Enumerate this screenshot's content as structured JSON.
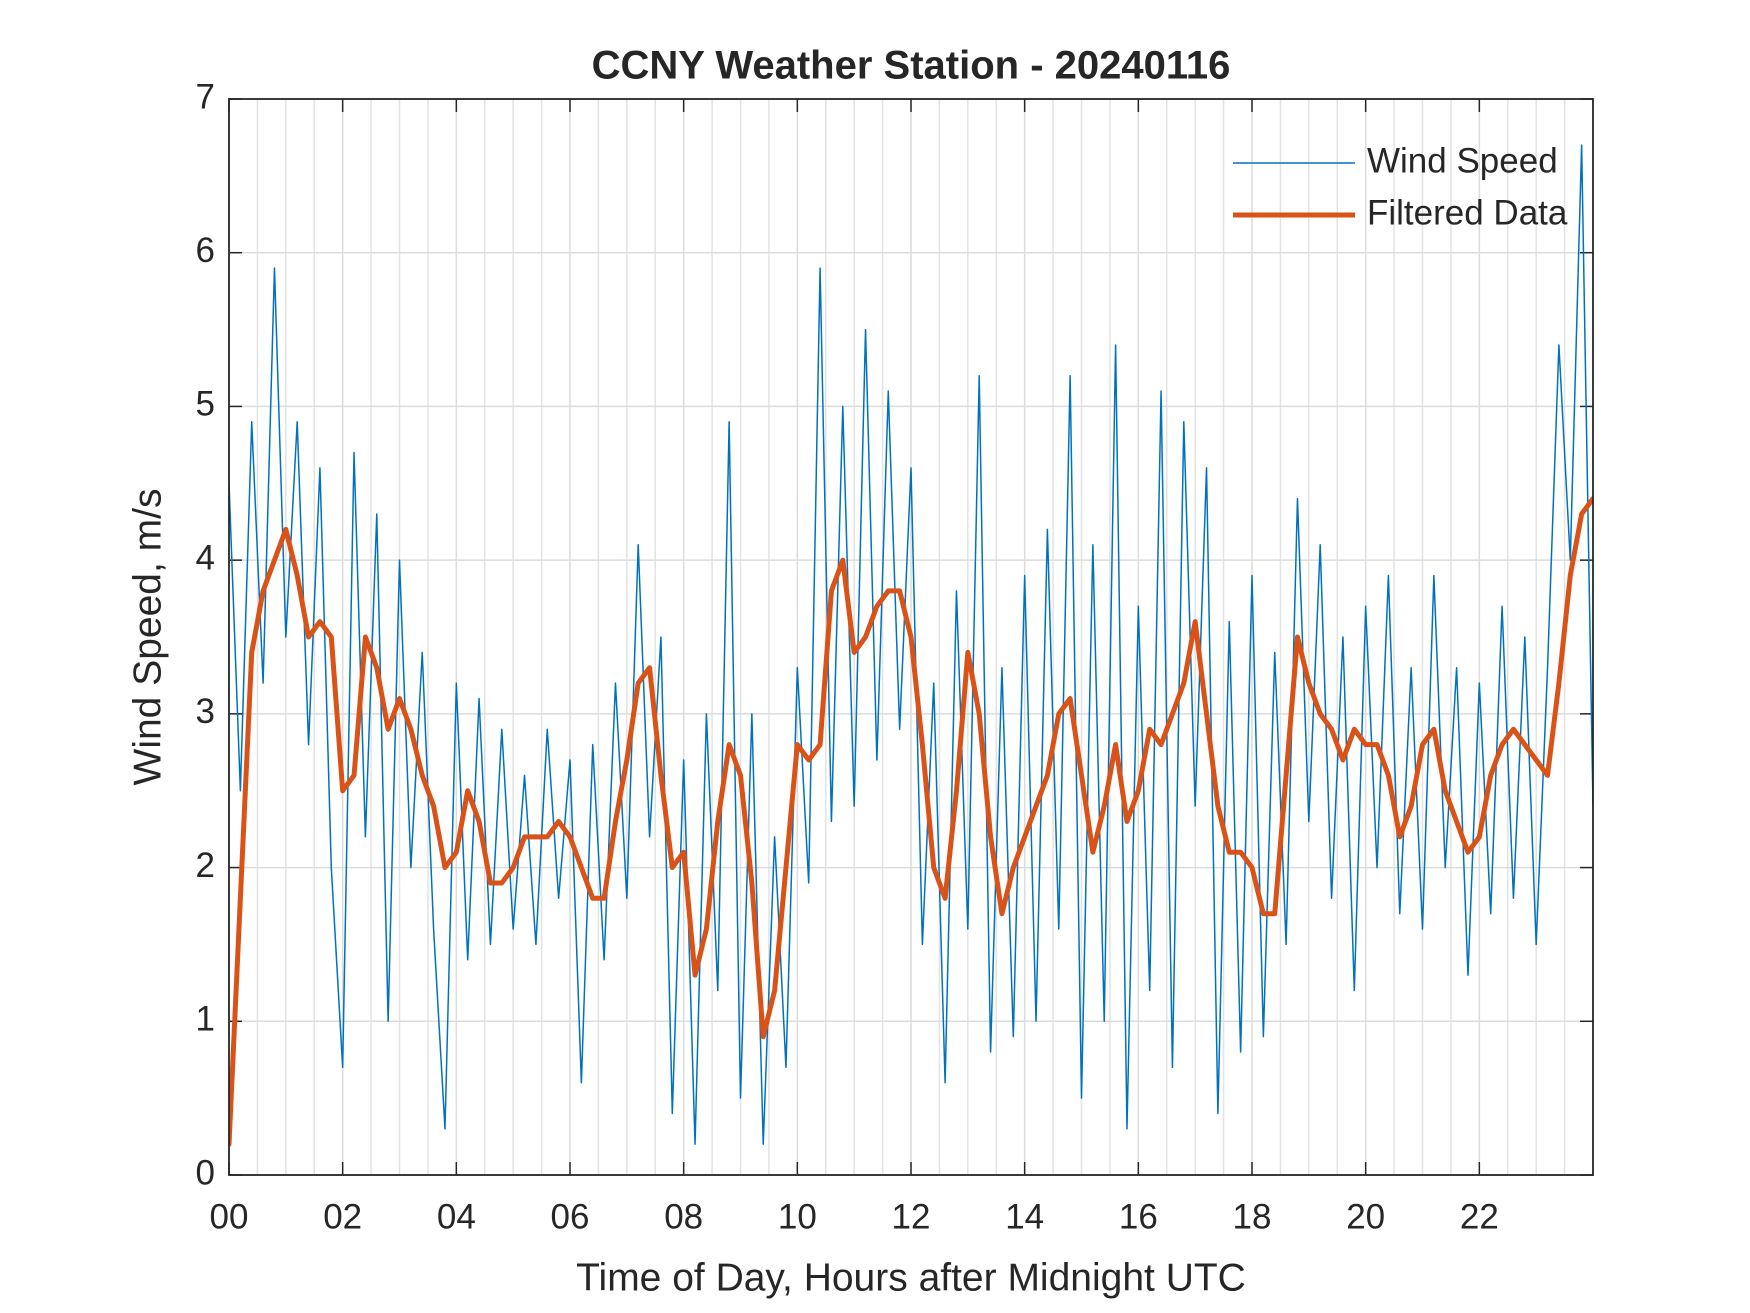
{
  "chart_data": {
    "type": "line",
    "title": "CCNY Weather Station - 20240116",
    "xlabel": "Time of Day, Hours after Midnight UTC",
    "ylabel": "Wind Speed, m/s",
    "x": [
      0,
      0.2,
      0.4,
      0.6,
      0.8,
      1,
      1.2,
      1.4,
      1.6,
      1.8,
      2,
      2.2,
      2.4,
      2.6,
      2.8,
      3,
      3.2,
      3.4,
      3.6,
      3.8,
      4,
      4.2,
      4.4,
      4.6,
      4.8,
      5,
      5.2,
      5.4,
      5.6,
      5.8,
      6,
      6.2,
      6.4,
      6.6,
      6.8,
      7,
      7.2,
      7.4,
      7.6,
      7.8,
      8,
      8.2,
      8.4,
      8.6,
      8.8,
      9,
      9.2,
      9.4,
      9.6,
      9.8,
      10,
      10.2,
      10.4,
      10.6,
      10.8,
      11,
      11.2,
      11.4,
      11.6,
      11.8,
      12,
      12.2,
      12.4,
      12.6,
      12.8,
      13,
      13.2,
      13.4,
      13.6,
      13.8,
      14,
      14.2,
      14.4,
      14.6,
      14.8,
      15,
      15.2,
      15.4,
      15.6,
      15.8,
      16,
      16.2,
      16.4,
      16.6,
      16.8,
      17,
      17.2,
      17.4,
      17.6,
      17.8,
      18,
      18.2,
      18.4,
      18.6,
      18.8,
      19,
      19.2,
      19.4,
      19.6,
      19.8,
      20,
      20.2,
      20.4,
      20.6,
      20.8,
      21,
      21.2,
      21.4,
      21.6,
      21.8,
      22,
      22.2,
      22.4,
      22.6,
      22.8,
      23,
      23.2,
      23.4,
      23.6,
      23.8,
      24
    ],
    "series": [
      {
        "name": "Wind Speed",
        "color": "#0072bd",
        "width": 1.5,
        "values": [
          4.5,
          2.5,
          4.9,
          3.2,
          5.9,
          3.5,
          4.9,
          2.8,
          4.6,
          2.0,
          0.7,
          4.7,
          2.2,
          4.3,
          1.0,
          4.0,
          2.0,
          3.4,
          1.6,
          0.3,
          3.2,
          1.4,
          3.1,
          1.5,
          2.9,
          1.6,
          2.6,
          1.5,
          2.9,
          1.8,
          2.7,
          0.6,
          2.8,
          1.4,
          3.2,
          1.8,
          4.1,
          2.2,
          3.5,
          0.4,
          2.7,
          0.2,
          3.0,
          1.2,
          4.9,
          0.5,
          3.0,
          0.2,
          2.2,
          0.7,
          3.3,
          1.9,
          5.9,
          2.3,
          5.0,
          2.4,
          5.5,
          2.7,
          5.1,
          2.9,
          4.6,
          1.5,
          3.2,
          0.6,
          3.8,
          1.6,
          5.2,
          0.8,
          3.3,
          0.9,
          3.9,
          1.0,
          4.2,
          1.6,
          5.2,
          0.5,
          4.1,
          1.0,
          5.4,
          0.3,
          3.7,
          1.2,
          5.1,
          0.7,
          4.9,
          2.4,
          4.6,
          0.4,
          3.6,
          0.8,
          3.9,
          0.9,
          3.4,
          1.5,
          4.4,
          2.3,
          4.1,
          1.8,
          3.5,
          1.2,
          3.7,
          2.0,
          3.9,
          1.7,
          3.3,
          1.6,
          3.9,
          2.0,
          3.3,
          1.3,
          3.2,
          1.7,
          3.7,
          1.8,
          3.5,
          1.5,
          3.3,
          5.4,
          4.0,
          6.7,
          2.4
        ]
      },
      {
        "name": "Filtered Data",
        "color": "#d95319",
        "width": 5,
        "values": [
          0.2,
          1.8,
          3.4,
          3.8,
          4.0,
          4.2,
          3.9,
          3.5,
          3.6,
          3.5,
          2.5,
          2.6,
          3.5,
          3.3,
          2.9,
          3.1,
          2.9,
          2.6,
          2.4,
          2.0,
          2.1,
          2.5,
          2.3,
          1.9,
          1.9,
          2.0,
          2.2,
          2.2,
          2.2,
          2.3,
          2.2,
          2.0,
          1.8,
          1.8,
          2.3,
          2.7,
          3.2,
          3.3,
          2.6,
          2.0,
          2.1,
          1.3,
          1.6,
          2.3,
          2.8,
          2.6,
          1.9,
          0.9,
          1.2,
          2.0,
          2.8,
          2.7,
          2.8,
          3.8,
          4.0,
          3.4,
          3.5,
          3.7,
          3.8,
          3.8,
          3.5,
          2.8,
          2.0,
          1.8,
          2.5,
          3.4,
          3.0,
          2.2,
          1.7,
          2.0,
          2.2,
          2.4,
          2.6,
          3.0,
          3.1,
          2.6,
          2.1,
          2.4,
          2.8,
          2.3,
          2.5,
          2.9,
          2.8,
          3.0,
          3.2,
          3.6,
          3.0,
          2.4,
          2.1,
          2.1,
          2.0,
          1.7,
          1.7,
          2.6,
          3.5,
          3.2,
          3.0,
          2.9,
          2.7,
          2.9,
          2.8,
          2.8,
          2.6,
          2.2,
          2.4,
          2.8,
          2.9,
          2.5,
          2.3,
          2.1,
          2.2,
          2.6,
          2.8,
          2.9,
          2.8,
          2.7,
          2.6,
          3.2,
          3.9,
          4.3,
          4.4
        ]
      }
    ],
    "xlim": [
      0,
      24
    ],
    "ylim": [
      0,
      7
    ],
    "xticks": [
      {
        "value": 0,
        "label": "00"
      },
      {
        "value": 2,
        "label": "02"
      },
      {
        "value": 4,
        "label": "04"
      },
      {
        "value": 6,
        "label": "06"
      },
      {
        "value": 8,
        "label": "08"
      },
      10,
      12,
      14,
      16,
      18,
      20,
      22
    ],
    "xminorticks": [
      0.5,
      1,
      1.5,
      2.5,
      3,
      3.5,
      4.5,
      5,
      5.5,
      6.5,
      7,
      7.5,
      8.5,
      9,
      9.5,
      10.5,
      11,
      11.5,
      12.5,
      13,
      13.5,
      14.5,
      15,
      15.5,
      16.5,
      17,
      17.5,
      18.5,
      19,
      19.5,
      20.5,
      21,
      21.5,
      22.5,
      23,
      23.5
    ],
    "yticks": [
      0,
      1,
      2,
      3,
      4,
      5,
      6,
      7
    ],
    "grid": true,
    "legend": "upper right"
  }
}
